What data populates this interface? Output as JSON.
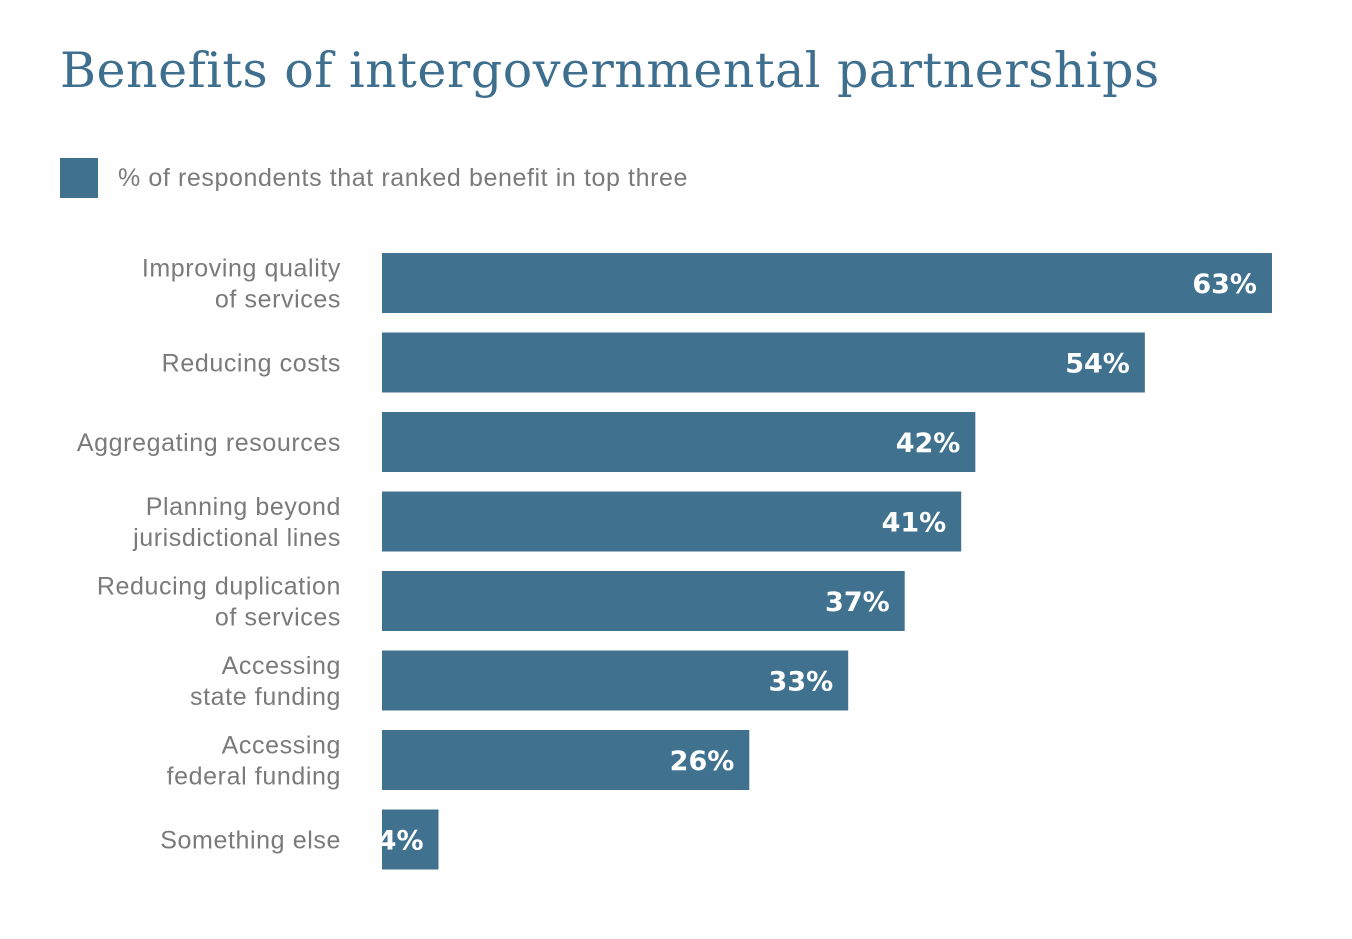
{
  "chart_data": {
    "type": "bar",
    "orientation": "horizontal",
    "title": "Benefits of intergovernmental partnerships",
    "legend_position": "top-left",
    "grid": false,
    "xlim": [
      0,
      63
    ],
    "series": [
      {
        "name": "% of respondents that ranked benefit in top three",
        "color": "#40728f",
        "values": [
          63,
          54,
          42,
          41,
          37,
          33,
          26,
          4
        ]
      }
    ],
    "categories": [
      [
        "Improving quality",
        "of services"
      ],
      [
        "Reducing costs"
      ],
      [
        "Aggregating resources"
      ],
      [
        "Planning beyond",
        "jurisdictional lines"
      ],
      [
        "Reducing duplication",
        "of services"
      ],
      [
        "Accessing",
        "state funding"
      ],
      [
        "Accessing",
        "federal funding"
      ],
      [
        "Something else"
      ]
    ],
    "value_labels": [
      "63%",
      "54%",
      "42%",
      "41%",
      "37%",
      "33%",
      "26%",
      "4%"
    ]
  }
}
